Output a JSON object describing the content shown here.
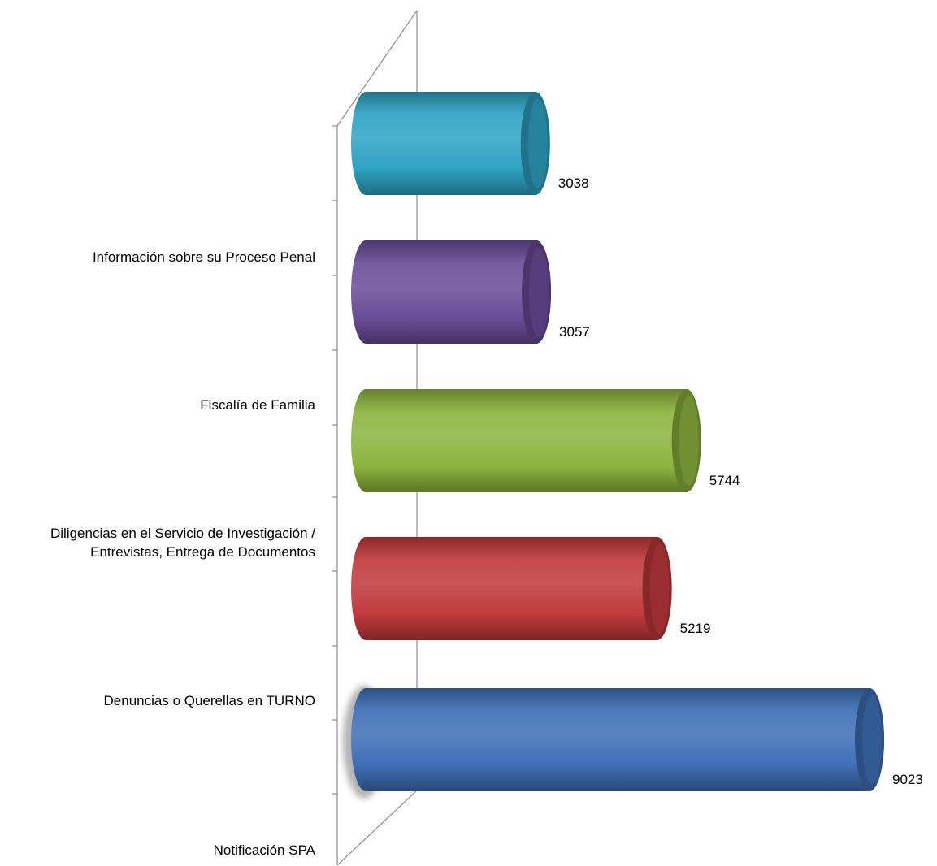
{
  "chart_data": {
    "type": "bar",
    "orientation": "horizontal",
    "style": "3d-cylinder",
    "categories": [
      "Notificación SPA",
      "Denuncias o Querellas en TURNO",
      "Diligencias en el Servicio de Investigación / Entrevistas, Entrega de Documentos",
      "Fiscalía de Familia",
      "Información sobre su Proceso Penal"
    ],
    "category_labels": [
      "Notificación SPA",
      "Denuncias o Querellas en TURNO",
      "Diligencias en el Servicio de Investigación /\nEntrevistas, Entrega de Documentos",
      "Fiscalía de Familia",
      "Información sobre su Proceso Penal"
    ],
    "bars": [
      {
        "value": 9023,
        "label": "9023",
        "color": "#3f6fb7"
      },
      {
        "value": 5219,
        "label": "5219",
        "color": "#c0393b"
      },
      {
        "value": 5744,
        "label": "5744",
        "color": "#8cb43e"
      },
      {
        "value": 3057,
        "label": "3057",
        "color": "#6a4d99"
      },
      {
        "value": 3038,
        "label": "3038",
        "color": "#2ea3c3"
      }
    ],
    "xlim": [
      0,
      9500
    ],
    "grid": false,
    "legend": "none",
    "title": "",
    "xlabel": "",
    "ylabel": ""
  }
}
